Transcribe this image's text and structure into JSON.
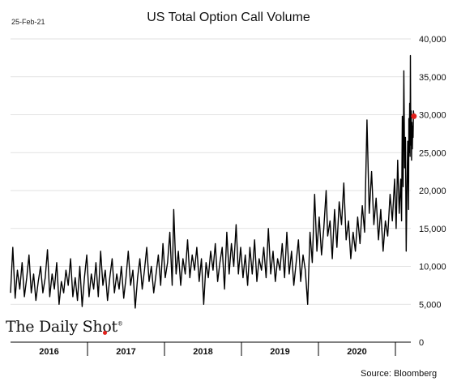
{
  "header": {
    "date": "25-Feb-21",
    "title": "US Total Option Call Volume"
  },
  "footer": {
    "source": "Source: Bloomberg",
    "logo_text": "The Daily Shot",
    "logo_mark": "®"
  },
  "colors": {
    "line": "#000000",
    "grid": "#d9d9d9",
    "last_point": "#e0201b",
    "logo_dot": "#e0201b"
  },
  "chart_data": {
    "type": "line",
    "title": "US Total Option Call Volume",
    "xlabel": "",
    "ylabel": "",
    "x_categories": [
      "2016",
      "2017",
      "2018",
      "2019",
      "2020"
    ],
    "ylim": [
      0,
      40000
    ],
    "yticks": [
      0,
      5000,
      10000,
      15000,
      20000,
      25000,
      30000,
      35000,
      40000
    ],
    "ytick_labels": [
      "0",
      "5,000",
      "10,000",
      "15,000",
      "20,000",
      "25,000",
      "30,000",
      "35,000",
      "40,000"
    ],
    "grid": "horizontal",
    "y_axis_side": "right",
    "x_domain": [
      2016,
      2021.2
    ],
    "series": [
      {
        "points": [
          [
            2016.0,
            6500
          ],
          [
            2016.03,
            12500
          ],
          [
            2016.06,
            5800
          ],
          [
            2016.09,
            9500
          ],
          [
            2016.12,
            7000
          ],
          [
            2016.15,
            10500
          ],
          [
            2016.18,
            6000
          ],
          [
            2016.21,
            8500
          ],
          [
            2016.24,
            11500
          ],
          [
            2016.27,
            6500
          ],
          [
            2016.3,
            9000
          ],
          [
            2016.33,
            5500
          ],
          [
            2016.36,
            8000
          ],
          [
            2016.39,
            10000
          ],
          [
            2016.42,
            6500
          ],
          [
            2016.45,
            8500
          ],
          [
            2016.48,
            12200
          ],
          [
            2016.51,
            6000
          ],
          [
            2016.54,
            9000
          ],
          [
            2016.57,
            7000
          ],
          [
            2016.6,
            10500
          ],
          [
            2016.63,
            5000
          ],
          [
            2016.66,
            8000
          ],
          [
            2016.69,
            6500
          ],
          [
            2016.72,
            9500
          ],
          [
            2016.75,
            7500
          ],
          [
            2016.78,
            11000
          ],
          [
            2016.81,
            6000
          ],
          [
            2016.84,
            8500
          ],
          [
            2016.87,
            5500
          ],
          [
            2016.9,
            10000
          ],
          [
            2016.93,
            4700
          ],
          [
            2016.96,
            8500
          ],
          [
            2016.99,
            11500
          ],
          [
            2017.02,
            6000
          ],
          [
            2017.05,
            9000
          ],
          [
            2017.08,
            7000
          ],
          [
            2017.11,
            10500
          ],
          [
            2017.14,
            6000
          ],
          [
            2017.17,
            12000
          ],
          [
            2017.2,
            7500
          ],
          [
            2017.23,
            9500
          ],
          [
            2017.26,
            5500
          ],
          [
            2017.29,
            8500
          ],
          [
            2017.32,
            11000
          ],
          [
            2017.35,
            6500
          ],
          [
            2017.38,
            9000
          ],
          [
            2017.41,
            7000
          ],
          [
            2017.44,
            10000
          ],
          [
            2017.47,
            5800
          ],
          [
            2017.5,
            8500
          ],
          [
            2017.53,
            12000
          ],
          [
            2017.56,
            7500
          ],
          [
            2017.59,
            9500
          ],
          [
            2017.62,
            4500
          ],
          [
            2017.65,
            8500
          ],
          [
            2017.68,
            11000
          ],
          [
            2017.71,
            7000
          ],
          [
            2017.74,
            9500
          ],
          [
            2017.77,
            12500
          ],
          [
            2017.8,
            8000
          ],
          [
            2017.83,
            10000
          ],
          [
            2017.86,
            6500
          ],
          [
            2017.89,
            9000
          ],
          [
            2017.92,
            11500
          ],
          [
            2017.95,
            7500
          ],
          [
            2017.98,
            13000
          ],
          [
            2018.01,
            8500
          ],
          [
            2018.04,
            10500
          ],
          [
            2018.07,
            14500
          ],
          [
            2018.1,
            7500
          ],
          [
            2018.12,
            17500
          ],
          [
            2018.15,
            9000
          ],
          [
            2018.18,
            12000
          ],
          [
            2018.21,
            7500
          ],
          [
            2018.24,
            11000
          ],
          [
            2018.27,
            9000
          ],
          [
            2018.3,
            13500
          ],
          [
            2018.33,
            8500
          ],
          [
            2018.36,
            11500
          ],
          [
            2018.39,
            9500
          ],
          [
            2018.42,
            12500
          ],
          [
            2018.45,
            8000
          ],
          [
            2018.48,
            11000
          ],
          [
            2018.51,
            5000
          ],
          [
            2018.54,
            10500
          ],
          [
            2018.57,
            8500
          ],
          [
            2018.6,
            12000
          ],
          [
            2018.63,
            9500
          ],
          [
            2018.66,
            13000
          ],
          [
            2018.69,
            8000
          ],
          [
            2018.72,
            10500
          ],
          [
            2018.75,
            12500
          ],
          [
            2018.78,
            7000
          ],
          [
            2018.81,
            14500
          ],
          [
            2018.84,
            9000
          ],
          [
            2018.87,
            13000
          ],
          [
            2018.9,
            10000
          ],
          [
            2018.93,
            15500
          ],
          [
            2018.96,
            9000
          ],
          [
            2018.99,
            12500
          ],
          [
            2019.02,
            8500
          ],
          [
            2019.05,
            11500
          ],
          [
            2019.08,
            7500
          ],
          [
            2019.11,
            12500
          ],
          [
            2019.14,
            9000
          ],
          [
            2019.17,
            13500
          ],
          [
            2019.2,
            8000
          ],
          [
            2019.23,
            11000
          ],
          [
            2019.26,
            9500
          ],
          [
            2019.29,
            12500
          ],
          [
            2019.32,
            8500
          ],
          [
            2019.35,
            15000
          ],
          [
            2019.38,
            9000
          ],
          [
            2019.41,
            12000
          ],
          [
            2019.44,
            8000
          ],
          [
            2019.47,
            11000
          ],
          [
            2019.5,
            9500
          ],
          [
            2019.53,
            13000
          ],
          [
            2019.56,
            8500
          ],
          [
            2019.59,
            14500
          ],
          [
            2019.62,
            9000
          ],
          [
            2019.65,
            12000
          ],
          [
            2019.68,
            7500
          ],
          [
            2019.71,
            10500
          ],
          [
            2019.74,
            13500
          ],
          [
            2019.77,
            8000
          ],
          [
            2019.8,
            11500
          ],
          [
            2019.83,
            9500
          ],
          [
            2019.86,
            5000
          ],
          [
            2019.89,
            14500
          ],
          [
            2019.92,
            10500
          ],
          [
            2019.95,
            19500
          ],
          [
            2019.98,
            12000
          ],
          [
            2020.01,
            16500
          ],
          [
            2020.04,
            11500
          ],
          [
            2020.07,
            15000
          ],
          [
            2020.1,
            20000
          ],
          [
            2020.12,
            14000
          ],
          [
            2020.15,
            16000
          ],
          [
            2020.18,
            11000
          ],
          [
            2020.21,
            17500
          ],
          [
            2020.24,
            12500
          ],
          [
            2020.27,
            18500
          ],
          [
            2020.3,
            15500
          ],
          [
            2020.33,
            21000
          ],
          [
            2020.36,
            13500
          ],
          [
            2020.39,
            16000
          ],
          [
            2020.42,
            11000
          ],
          [
            2020.45,
            14500
          ],
          [
            2020.48,
            12000
          ],
          [
            2020.51,
            16500
          ],
          [
            2020.54,
            13000
          ],
          [
            2020.57,
            18000
          ],
          [
            2020.6,
            14500
          ],
          [
            2020.63,
            29300
          ],
          [
            2020.66,
            17000
          ],
          [
            2020.69,
            22500
          ],
          [
            2020.72,
            15500
          ],
          [
            2020.75,
            19000
          ],
          [
            2020.78,
            13500
          ],
          [
            2020.81,
            17500
          ],
          [
            2020.84,
            12000
          ],
          [
            2020.87,
            16000
          ],
          [
            2020.9,
            14000
          ],
          [
            2020.93,
            19500
          ],
          [
            2020.96,
            16000
          ],
          [
            2020.99,
            21500
          ],
          [
            2021.01,
            15000
          ],
          [
            2021.03,
            24000
          ],
          [
            2021.05,
            17000
          ],
          [
            2021.07,
            21500
          ],
          [
            2021.08,
            16000
          ],
          [
            2021.09,
            29800
          ],
          [
            2021.1,
            20500
          ],
          [
            2021.11,
            35800
          ],
          [
            2021.12,
            23000
          ],
          [
            2021.13,
            27000
          ],
          [
            2021.14,
            12000
          ],
          [
            2021.15,
            20500
          ],
          [
            2021.16,
            26500
          ],
          [
            2021.17,
            17500
          ],
          [
            2021.175,
            29500
          ],
          [
            2021.18,
            25000
          ],
          [
            2021.185,
            31500
          ],
          [
            2021.19,
            24500
          ],
          [
            2021.195,
            37800
          ],
          [
            2021.2,
            26000
          ],
          [
            2021.205,
            30500
          ],
          [
            2021.21,
            24000
          ],
          [
            2021.215,
            29000
          ],
          [
            2021.22,
            25500
          ],
          [
            2021.225,
            28500
          ],
          [
            2021.23,
            27000
          ],
          [
            2021.235,
            30500
          ],
          [
            2021.24,
            29800
          ]
        ]
      }
    ]
  }
}
